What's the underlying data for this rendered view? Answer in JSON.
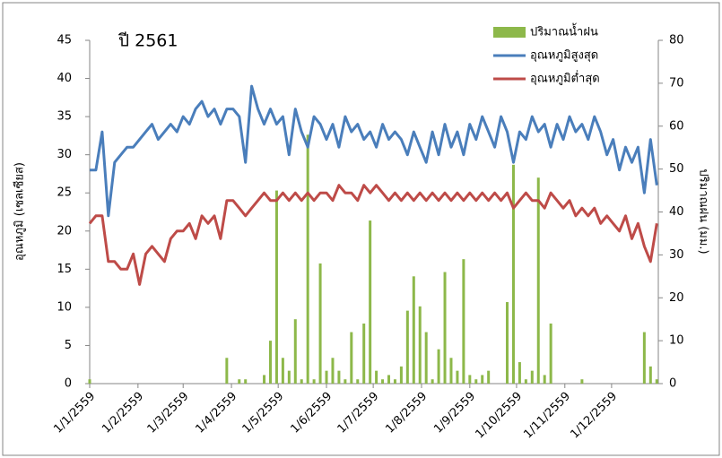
{
  "chart_data": {
    "type": "bar-line",
    "title": "ปี 2561",
    "y_label": "อุณหภูมิ (เซลเซียส)",
    "y2_label": "ปริมาณฝน (มม.)",
    "legend": "upper right",
    "grid": false,
    "x": [
      1,
      5,
      9,
      13,
      17,
      21,
      25,
      29,
      33,
      37,
      41,
      45,
      49,
      53,
      57,
      61,
      65,
      69,
      73,
      77,
      81,
      85,
      89,
      93,
      97,
      101,
      105,
      109,
      113,
      117,
      121,
      125,
      129,
      133,
      137,
      141,
      145,
      149,
      153,
      157,
      161,
      165,
      169,
      173,
      177,
      181,
      185,
      189,
      193,
      197,
      201,
      205,
      209,
      213,
      217,
      221,
      225,
      229,
      233,
      237,
      241,
      245,
      249,
      253,
      257,
      261,
      265,
      269,
      273,
      277,
      281,
      285,
      289,
      293,
      297,
      301,
      305,
      309,
      313,
      317,
      321,
      325,
      329,
      333,
      337,
      341,
      345,
      349,
      353,
      357,
      361,
      365
    ],
    "xlim": [
      1,
      366
    ],
    "xticks": [
      {
        "value": 1,
        "label": "1/1/2559"
      },
      {
        "value": 32,
        "label": "1/2/2559"
      },
      {
        "value": 61,
        "label": "1/3/2559"
      },
      {
        "value": 92,
        "label": "1/4/2559"
      },
      {
        "value": 122,
        "label": "1/5/2559"
      },
      {
        "value": 153,
        "label": "1/6/2559"
      },
      {
        "value": 183,
        "label": "1/7/2559"
      },
      {
        "value": 214,
        "label": "1/8/2559"
      },
      {
        "value": 245,
        "label": "1/9/2559"
      },
      {
        "value": 275,
        "label": "1/10/2559"
      },
      {
        "value": 306,
        "label": "1/11/2559"
      },
      {
        "value": 336,
        "label": "1/12/2559"
      }
    ],
    "ylim": [
      0,
      45
    ],
    "yticks": [
      0,
      5,
      10,
      15,
      20,
      25,
      30,
      35,
      40,
      45
    ],
    "y2lim": [
      0,
      80
    ],
    "y2ticks": [
      0,
      10,
      20,
      30,
      40,
      50,
      60,
      70,
      80
    ],
    "series": [
      {
        "name": "ปริมาณน้ำฝน",
        "color": "#8db84a",
        "kind": "bar",
        "axis": "y2",
        "values": [
          1,
          0,
          0,
          0,
          0,
          0,
          0,
          0,
          0,
          0,
          0,
          0,
          0,
          0,
          0,
          0,
          0,
          0,
          0,
          0,
          0,
          0,
          6,
          0,
          1,
          1,
          0,
          0,
          2,
          10,
          45,
          6,
          3,
          15,
          1,
          58,
          1,
          28,
          3,
          6,
          3,
          1,
          12,
          1,
          14,
          38,
          3,
          1,
          2,
          1,
          4,
          17,
          25,
          18,
          12,
          1,
          8,
          26,
          6,
          3,
          29,
          2,
          1,
          2,
          3,
          0,
          0,
          19,
          51,
          5,
          1,
          3,
          48,
          2,
          14,
          0,
          0,
          0,
          0,
          1,
          0,
          0,
          0,
          0,
          0,
          0,
          0,
          0,
          0,
          12,
          4,
          1
        ]
      },
      {
        "name": "อุณหภูมิสูงสุด",
        "color": "#4a7ebb",
        "kind": "line",
        "values": [
          28,
          28,
          33,
          22,
          29,
          30,
          31,
          31,
          32,
          33,
          34,
          32,
          33,
          34,
          33,
          35,
          34,
          36,
          37,
          35,
          36,
          34,
          36,
          36,
          35,
          29,
          39,
          36,
          34,
          36,
          34,
          35,
          30,
          36,
          33,
          31,
          35,
          34,
          32,
          34,
          31,
          35,
          33,
          34,
          32,
          33,
          31,
          34,
          32,
          33,
          32,
          30,
          33,
          31,
          29,
          33,
          30,
          34,
          31,
          33,
          30,
          34,
          32,
          35,
          33,
          31,
          35,
          33,
          29,
          33,
          32,
          35,
          33,
          34,
          31,
          34,
          32,
          35,
          33,
          34,
          32,
          35,
          33,
          30,
          32,
          28,
          31,
          29,
          31,
          25,
          32,
          26
        ]
      },
      {
        "name": "อุณหภูมิต่ำสุด",
        "color": "#be4b48",
        "kind": "line",
        "values": [
          21,
          22,
          22,
          16,
          16,
          15,
          15,
          17,
          13,
          17,
          18,
          17,
          16,
          19,
          20,
          20,
          21,
          19,
          22,
          21,
          22,
          19,
          24,
          24,
          23,
          22,
          23,
          24,
          25,
          24,
          24,
          25,
          24,
          25,
          24,
          25,
          24,
          25,
          25,
          24,
          26,
          25,
          25,
          24,
          26,
          25,
          26,
          25,
          24,
          25,
          24,
          25,
          24,
          25,
          24,
          25,
          24,
          25,
          24,
          25,
          24,
          25,
          24,
          25,
          24,
          25,
          24,
          25,
          23,
          24,
          25,
          24,
          24,
          23,
          25,
          24,
          23,
          24,
          22,
          23,
          22,
          23,
          21,
          22,
          21,
          20,
          22,
          19,
          21,
          18,
          16,
          21
        ]
      }
    ]
  }
}
